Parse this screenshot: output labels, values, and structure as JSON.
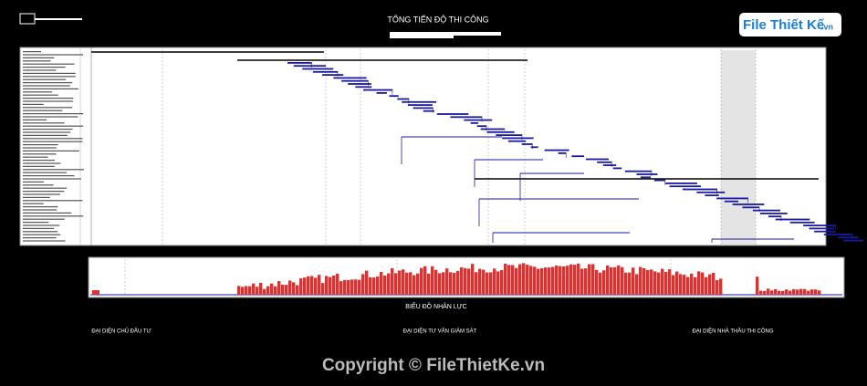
{
  "header": {
    "title": "TỔNG TIẾN ĐỘ THI CÔNG",
    "logo": {
      "main": "File Thiết Kế",
      "suffix": ".vn"
    }
  },
  "histogram": {
    "title": "BIỂU ĐỒ NHÂN LỰC"
  },
  "signatures": [
    "ĐẠI DIỆN CHỦ ĐẦU TƯ",
    "ĐẠI DIỆN TƯ VẤN GIÁM SÁT",
    "ĐẠI DIỆN NHÀ THẦU THI CÔNG"
  ],
  "footer": {
    "copyright": "Copyright © FileThietKe.vn"
  }
}
